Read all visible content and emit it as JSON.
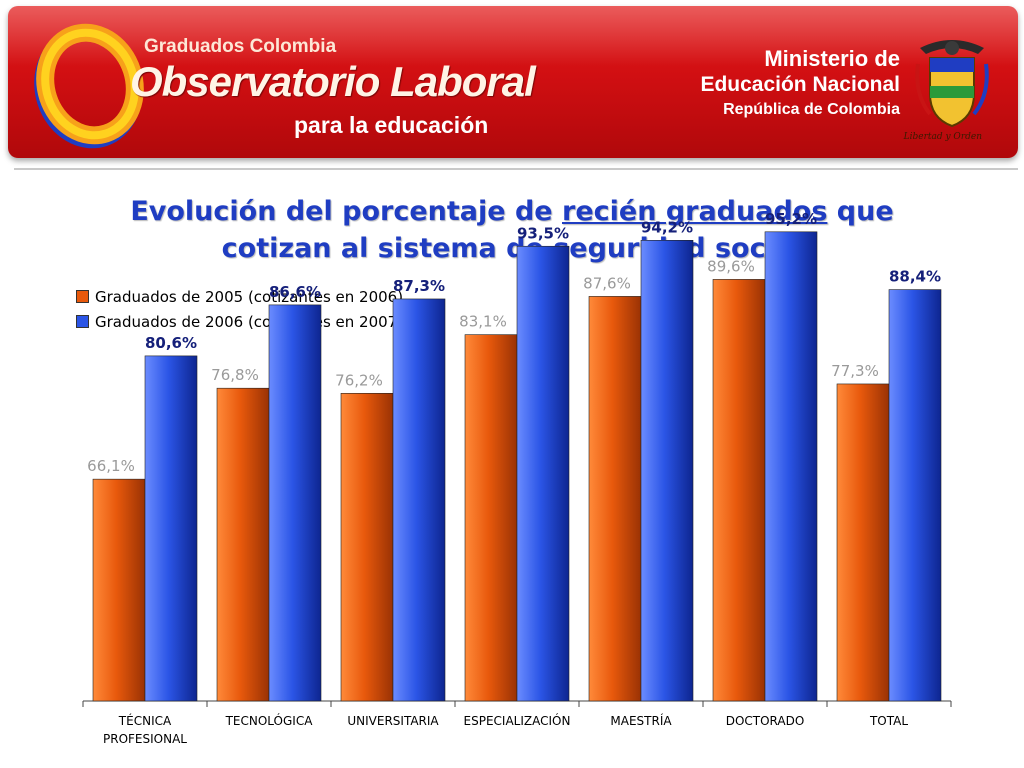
{
  "banner": {
    "brand_small": "Graduados Colombia",
    "brand_big": "Observatorio Laboral",
    "brand_sub": "para la educación",
    "ministry_line1": "Ministerio de",
    "ministry_line2": "Educación Nacional",
    "ministry_line3": "República de Colombia",
    "motto": "Libertad y Orden",
    "colors": {
      "banner": "#d10f12",
      "ring_orange": "#f7a11a",
      "ring_yellow": "#ffd21f",
      "ring_blue": "#1f3dc2"
    }
  },
  "title": {
    "part1": "Evolución del porcentaje de ",
    "underlined": "recién graduados",
    "part2": " que",
    "line2": "cotizan al sistema de seguridad social"
  },
  "chart_data": {
    "type": "bar",
    "title": "Evolución del porcentaje de recién graduados que cotizan al sistema de seguridad social",
    "xlabel": "",
    "ylabel": "",
    "ylim": [
      40,
      100
    ],
    "grid": false,
    "legend_position": "top-left",
    "categories": [
      [
        "TÉCNICA",
        "PROFESIONAL"
      ],
      [
        "TECNOLÓGICA"
      ],
      [
        "UNIVERSITARIA"
      ],
      [
        "ESPECIALIZACIÓN"
      ],
      [
        "MAESTRÍA"
      ],
      [
        "DOCTORADO"
      ],
      [
        "TOTAL"
      ]
    ],
    "series": [
      {
        "name": "Graduados de 2005 (cotizantes en 2006)",
        "color": "#e8590c",
        "values": [
          66.1,
          76.8,
          76.2,
          83.1,
          87.6,
          89.6,
          77.3
        ],
        "labels": [
          "66,1%",
          "76,8%",
          "76,2%",
          "83,1%",
          "87,6%",
          "89,6%",
          "77,3%"
        ]
      },
      {
        "name": "Graduados de 2006 (cotizantes en 2007)",
        "color": "#2b55e6",
        "values": [
          80.6,
          86.6,
          87.3,
          93.5,
          94.2,
          95.2,
          88.4
        ],
        "labels": [
          "80,6%",
          "86,6%",
          "87,3%",
          "93,5%",
          "94,2%",
          "95,2%",
          "88,4%"
        ]
      }
    ]
  }
}
